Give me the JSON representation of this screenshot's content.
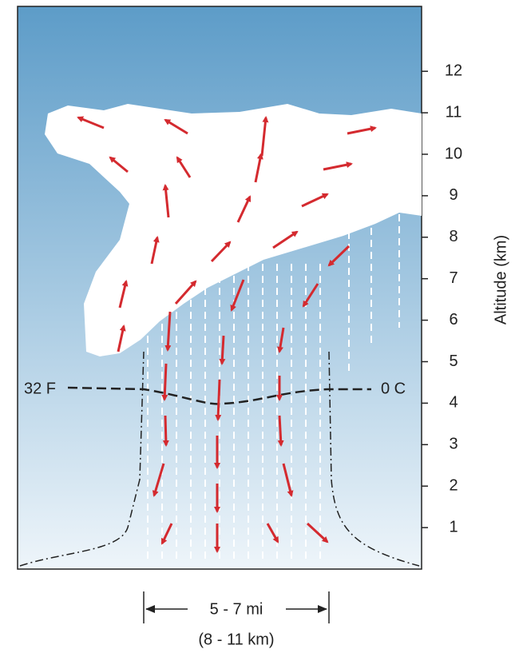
{
  "axis": {
    "label": "Altitude (km)",
    "ticks": [
      1,
      2,
      3,
      4,
      5,
      6,
      7,
      8,
      9,
      10,
      11,
      12
    ]
  },
  "freezing_level": {
    "left_label": "32 F",
    "right_label": "0 C"
  },
  "width": {
    "miles": "5 - 7 mi",
    "km": "(8 - 11 km)"
  }
}
